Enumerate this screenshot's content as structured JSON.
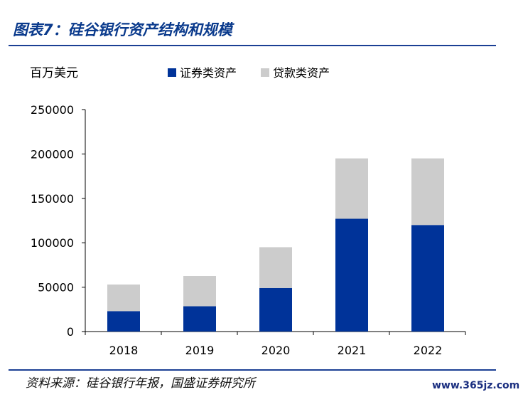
{
  "figure": {
    "title": "图表7：硅谷银行资产结构和规模",
    "source": "资料来源：硅谷银行年报，国盛证券研究所",
    "watermark": "www.365jz.com"
  },
  "colors": {
    "securities": "#003399",
    "loans": "#cccccc",
    "rule": "#1b3f94",
    "title": "#0a3a8c"
  },
  "chart_data": {
    "type": "bar",
    "stacked": true,
    "unit_label": "百万美元",
    "categories": [
      "2018",
      "2019",
      "2020",
      "2021",
      "2022"
    ],
    "series": [
      {
        "name": "证券类资产",
        "values": [
          23000,
          28500,
          49000,
          127000,
          120000
        ]
      },
      {
        "name": "贷款类资产",
        "values": [
          30000,
          34000,
          46000,
          68000,
          75000
        ]
      }
    ],
    "ylim": [
      0,
      250000
    ],
    "yticks": [
      "0",
      "50000",
      "100000",
      "150000",
      "200000",
      "250000"
    ],
    "grid": false,
    "legend_position": "top"
  }
}
